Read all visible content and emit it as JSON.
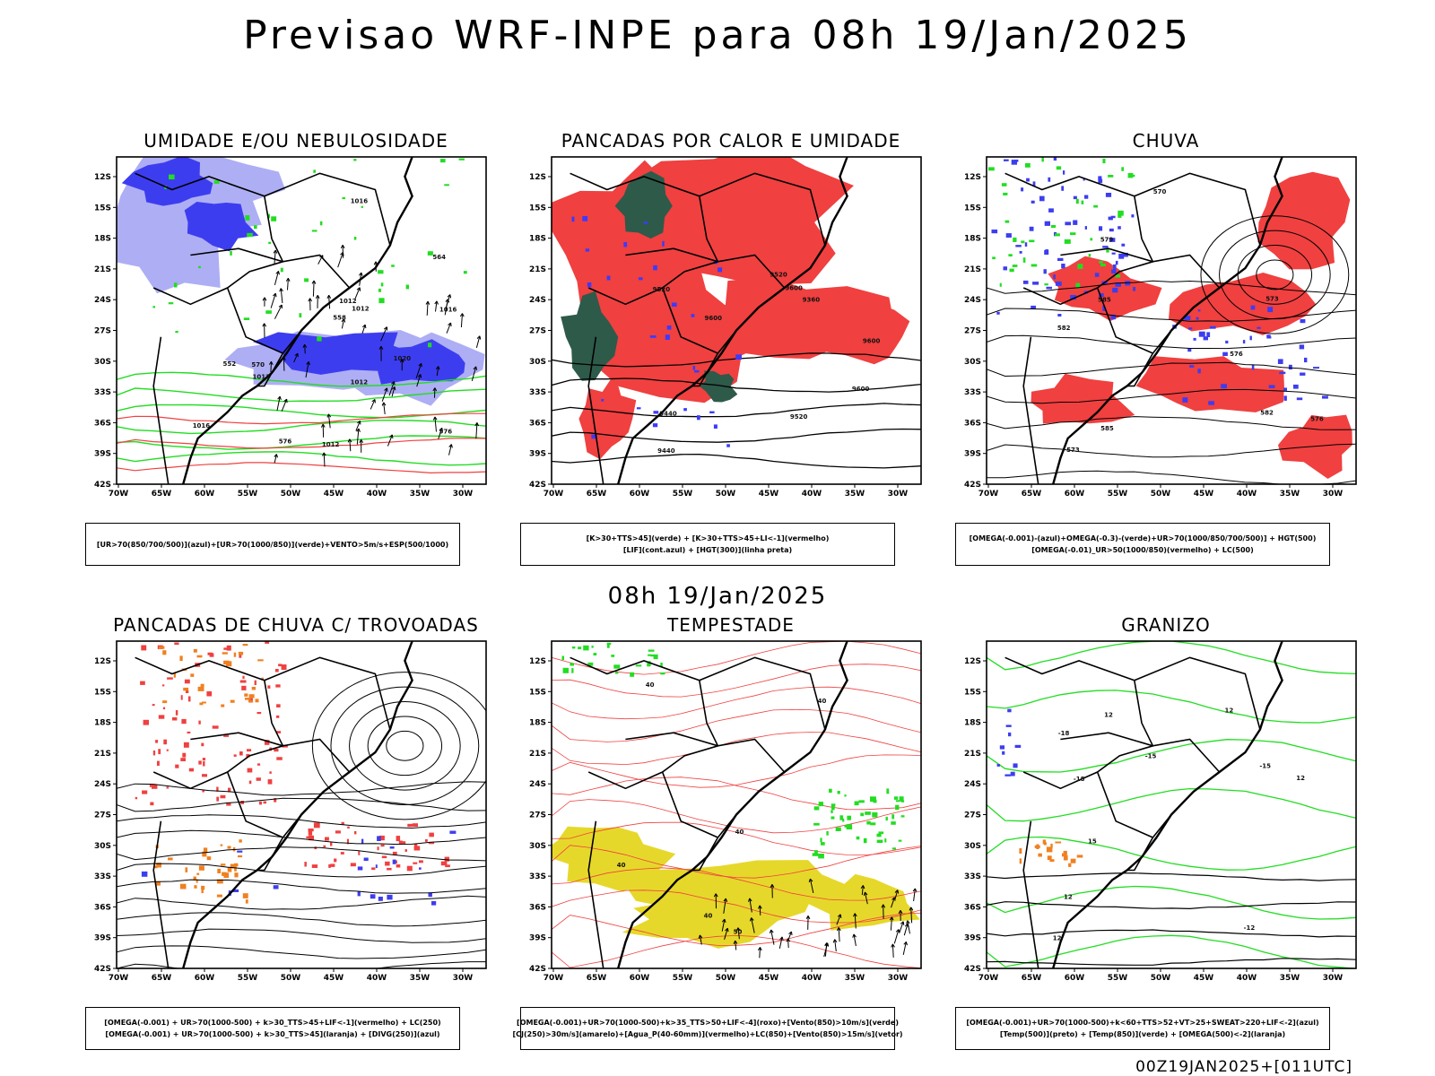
{
  "header": {
    "title": "Previsao WRF-INPE  para 08h 19/Jan/2025"
  },
  "mid_label": "08h 19/Jan/2025",
  "footer": {
    "stamp": "00Z19JAN2025+[011UTC]"
  },
  "axes": {
    "lat_labels": [
      "12S",
      "15S",
      "18S",
      "21S",
      "24S",
      "27S",
      "30S",
      "33S",
      "36S",
      "39S",
      "42S"
    ],
    "lon_labels": [
      "70W",
      "65W",
      "60W",
      "55W",
      "50W",
      "45W",
      "40W",
      "35W",
      "30W"
    ]
  },
  "colors": {
    "blue": "#3d3df0",
    "lavender": "#aeaef5",
    "green": "#22dd22",
    "red": "#f04040",
    "dark_green": "#2e5a4a",
    "orange": "#f08020",
    "yellow": "#e6d82a"
  },
  "panels": [
    {
      "id": "umidade",
      "title": "UMIDADE E/OU NEBULOSIDADE",
      "legend": [
        "[UR>70(850/700/500)](azul)+[UR>70(1000/850)](verde)+VENTO>5m/s+ESP(500/1000)"
      ],
      "contour_labels": [
        "1012",
        "1016",
        "1012",
        "1012",
        "1016",
        "1020",
        "1016",
        "1012",
        "1012",
        "576",
        "576",
        "570",
        "564",
        "558",
        "552"
      ]
    },
    {
      "id": "pancadas-calor",
      "title": "PANCADAS POR CALOR E UMIDADE",
      "legend": [
        "[K>30+TTS>45](verde) + [K>30+TTS>45+LI<-1](vermelho)",
        "[LIF](cont.azul) + [HGT(300)](linha preta)"
      ],
      "contour_labels": [
        "9600",
        "9600",
        "9520",
        "9600",
        "9520",
        "9600",
        "9520",
        "9440",
        "9360",
        "9440"
      ]
    },
    {
      "id": "chuva",
      "title": "CHUVA",
      "legend": [
        "[OMEGA(-0.001)-(azul)+OMEGA(-0.3)-(verde)+UR>70(1000/850/700/500)] + HGT(500)",
        "[OMEGA(-0.01)_UR>50(1000/850)(vermelho) + LC(500)"
      ],
      "contour_labels": [
        "585",
        "585",
        "582",
        "582",
        "579",
        "576",
        "576",
        "573",
        "573",
        "570"
      ]
    },
    {
      "id": "pancadas-trovoadas",
      "title": "PANCADAS DE CHUVA C/ TROVOADAS",
      "legend": [
        "[OMEGA(-0.001) + UR>70(1000-500) + k>30_TTS>45+LIF<-1](vermelho) + LC(250)",
        "[OMEGA(-0.001) + UR>70(1000-500) + k>30_TTS>45](laranja) + [DIVG(250)](azul)"
      ],
      "contour_labels": []
    },
    {
      "id": "tempestade",
      "title": "TEMPESTADE",
      "legend": [
        "[OMEGA(-0.001)+UR>70(1000-500)+k>35_TTS>50+LIF<-4](roxo)+[Vento(850)>10m/s](verde)",
        "[CJ(250)>30m/s](amarelo)+[Agua_P(40-60mm)](vermelho)+LC(850)+[Vento(850)>15m/s](vetor)"
      ],
      "contour_labels": [
        "40",
        "40",
        "40",
        "40",
        "50",
        "40"
      ]
    },
    {
      "id": "granizo",
      "title": "GRANIZO",
      "legend": [
        "[OMEGA(-0.001)+UR>70(1000-500)+k<60+TTS>52+VT>25+SWEAT>220+LIF<-2](azul)",
        "[Temp(500)](preto) + [Temp(850)](verde) + [OMEGA(500)<-2](laranja)"
      ],
      "contour_labels": [
        "12",
        "12",
        "12",
        "15",
        "12",
        "12",
        "-12",
        "-15",
        "-18",
        "-18",
        "-15"
      ]
    }
  ]
}
